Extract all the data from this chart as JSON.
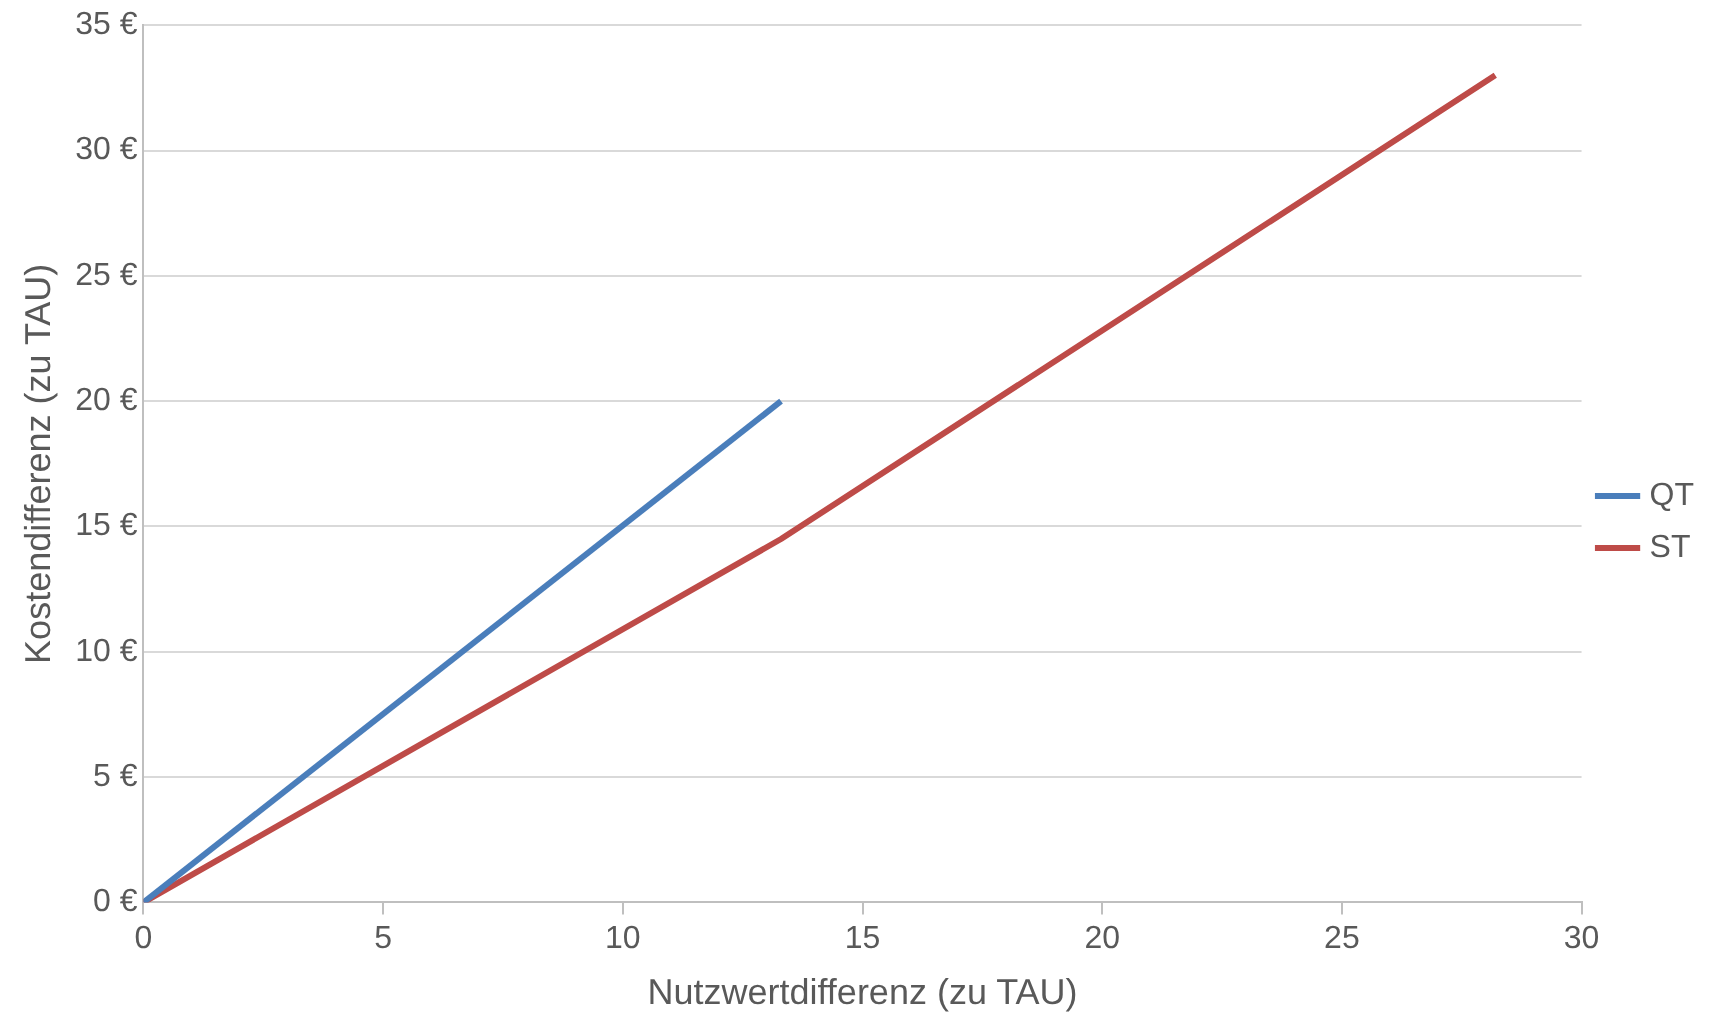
{
  "chart_data": {
    "type": "line",
    "xlabel": "Nutzwertdifferenz (zu TAU)",
    "ylabel": "Kostendifferenz (zu TAU)",
    "series": [
      {
        "name": "QT",
        "color": "#4a7ebb",
        "x": [
          0,
          13.3
        ],
        "values": [
          0,
          20
        ]
      },
      {
        "name": "ST",
        "color": "#be4b48",
        "x": [
          0,
          13.3,
          28.2
        ],
        "values": [
          0,
          14.5,
          33
        ]
      }
    ],
    "xlim": [
      0,
      30
    ],
    "xticks": [
      0,
      5,
      10,
      15,
      20,
      25,
      30
    ],
    "ylim": [
      0,
      35
    ],
    "yticks": [
      {
        "value": 0,
        "label": "0 €"
      },
      {
        "value": 5,
        "label": "5 €"
      },
      {
        "value": 10,
        "label": "10 €"
      },
      {
        "value": 15,
        "label": "15 €"
      },
      {
        "value": 20,
        "label": "20 €"
      },
      {
        "value": 25,
        "label": "25 €"
      },
      {
        "value": 30,
        "label": "30 €"
      },
      {
        "value": 35,
        "label": "35 €"
      }
    ],
    "grid": "y",
    "legend": "right",
    "marker": "none",
    "line_style": "solid"
  }
}
